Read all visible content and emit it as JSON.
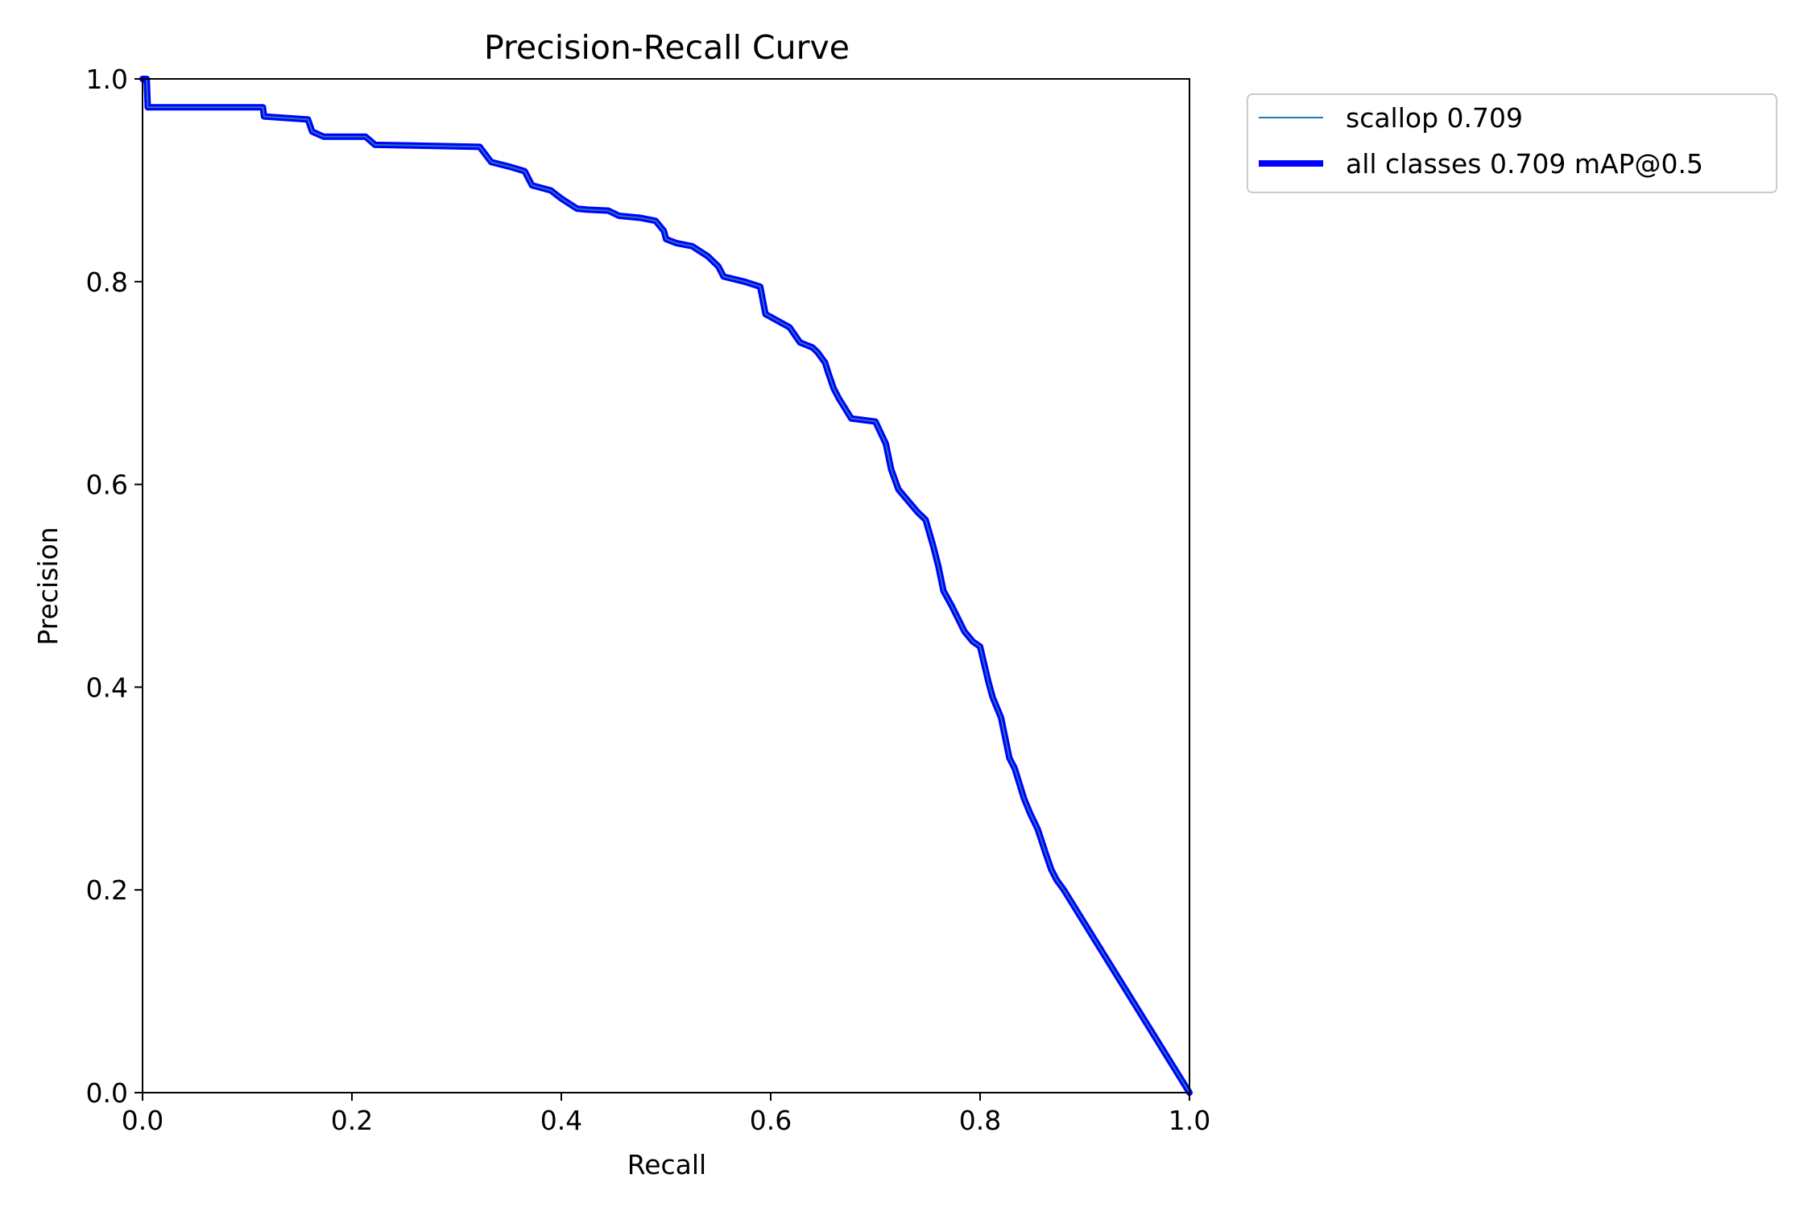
{
  "colors": {
    "series_scallop": "#1f77b4",
    "series_all_classes": "#0000ff",
    "axis": "#000000",
    "background": "#ffffff",
    "legend_border": "#cccccc"
  },
  "chart_data": {
    "type": "line",
    "title": "Precision-Recall Curve",
    "xlabel": "Recall",
    "ylabel": "Precision",
    "xlim": [
      0.0,
      1.0
    ],
    "ylim": [
      0.0,
      1.0
    ],
    "xticks": [
      "0.0",
      "0.2",
      "0.4",
      "0.6",
      "0.8",
      "1.0"
    ],
    "yticks": [
      "0.0",
      "0.2",
      "0.4",
      "0.6",
      "0.8",
      "1.0"
    ],
    "grid": false,
    "legend_position": "outside-top-right",
    "series": [
      {
        "name": "scallop 0.709",
        "color": "#1f77b4",
        "width": "thin",
        "x": [
          0.0,
          0.004,
          0.005,
          0.115,
          0.116,
          0.158,
          0.162,
          0.173,
          0.213,
          0.222,
          0.322,
          0.333,
          0.352,
          0.365,
          0.372,
          0.39,
          0.4,
          0.415,
          0.425,
          0.445,
          0.455,
          0.475,
          0.49,
          0.498,
          0.5,
          0.51,
          0.525,
          0.54,
          0.55,
          0.555,
          0.575,
          0.59,
          0.595,
          0.618,
          0.628,
          0.64,
          0.645,
          0.652,
          0.655,
          0.66,
          0.665,
          0.677,
          0.7,
          0.71,
          0.715,
          0.722,
          0.74,
          0.748,
          0.755,
          0.76,
          0.765,
          0.773,
          0.785,
          0.793,
          0.8,
          0.808,
          0.812,
          0.82,
          0.828,
          0.833,
          0.842,
          0.848,
          0.855,
          0.863,
          0.868,
          0.873,
          0.88,
          1.0
        ],
        "y": [
          1.0,
          1.0,
          0.972,
          0.972,
          0.963,
          0.96,
          0.948,
          0.943,
          0.943,
          0.935,
          0.933,
          0.918,
          0.913,
          0.909,
          0.895,
          0.89,
          0.882,
          0.872,
          0.871,
          0.87,
          0.865,
          0.863,
          0.86,
          0.85,
          0.842,
          0.838,
          0.835,
          0.825,
          0.815,
          0.805,
          0.8,
          0.795,
          0.768,
          0.755,
          0.74,
          0.735,
          0.73,
          0.72,
          0.71,
          0.695,
          0.685,
          0.665,
          0.662,
          0.64,
          0.615,
          0.595,
          0.573,
          0.565,
          0.54,
          0.52,
          0.495,
          0.48,
          0.455,
          0.445,
          0.44,
          0.405,
          0.39,
          0.37,
          0.33,
          0.32,
          0.29,
          0.275,
          0.26,
          0.235,
          0.22,
          0.21,
          0.2,
          0.0
        ]
      },
      {
        "name": "all classes 0.709 mAP@0.5",
        "color": "#0000ff",
        "width": "thick",
        "x": [
          0.0,
          0.004,
          0.005,
          0.115,
          0.116,
          0.158,
          0.162,
          0.173,
          0.213,
          0.222,
          0.322,
          0.333,
          0.352,
          0.365,
          0.372,
          0.39,
          0.4,
          0.415,
          0.425,
          0.445,
          0.455,
          0.475,
          0.49,
          0.498,
          0.5,
          0.51,
          0.525,
          0.54,
          0.55,
          0.555,
          0.575,
          0.59,
          0.595,
          0.618,
          0.628,
          0.64,
          0.645,
          0.652,
          0.655,
          0.66,
          0.665,
          0.677,
          0.7,
          0.71,
          0.715,
          0.722,
          0.74,
          0.748,
          0.755,
          0.76,
          0.765,
          0.773,
          0.785,
          0.793,
          0.8,
          0.808,
          0.812,
          0.82,
          0.828,
          0.833,
          0.842,
          0.848,
          0.855,
          0.863,
          0.868,
          0.873,
          0.88,
          1.0
        ],
        "y": [
          1.0,
          1.0,
          0.972,
          0.972,
          0.963,
          0.96,
          0.948,
          0.943,
          0.943,
          0.935,
          0.933,
          0.918,
          0.913,
          0.909,
          0.895,
          0.89,
          0.882,
          0.872,
          0.871,
          0.87,
          0.865,
          0.863,
          0.86,
          0.85,
          0.842,
          0.838,
          0.835,
          0.825,
          0.815,
          0.805,
          0.8,
          0.795,
          0.768,
          0.755,
          0.74,
          0.735,
          0.73,
          0.72,
          0.71,
          0.695,
          0.685,
          0.665,
          0.662,
          0.64,
          0.615,
          0.595,
          0.573,
          0.565,
          0.54,
          0.52,
          0.495,
          0.48,
          0.455,
          0.445,
          0.44,
          0.405,
          0.39,
          0.37,
          0.33,
          0.32,
          0.29,
          0.275,
          0.26,
          0.235,
          0.22,
          0.21,
          0.2,
          0.0
        ]
      }
    ]
  }
}
